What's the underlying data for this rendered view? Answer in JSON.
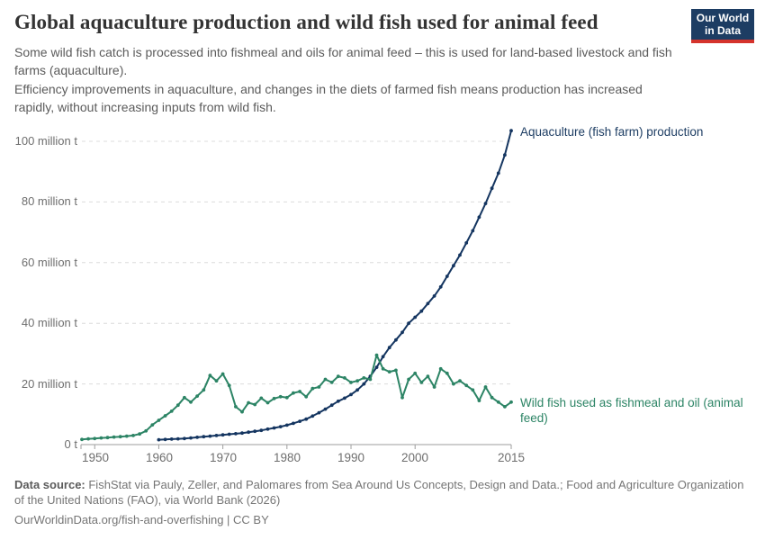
{
  "header": {
    "title": "Global aquaculture production and wild fish used for animal feed",
    "logo": {
      "line1": "Our World",
      "line2": "in Data",
      "bg_color": "#1d3d63",
      "bar_color": "#d5332c"
    },
    "subtitle_1": "Some wild fish catch is processed into fishmeal and oils for animal feed – this is used for land-based livestock and fish farms (aquaculture).",
    "subtitle_2": "Efficiency improvements in aquaculture, and changes in the diets of farmed fish means production has increased rapidly, without increasing inputs from wild fish."
  },
  "chart_data": {
    "type": "line",
    "title": "Global aquaculture production and wild fish used for animal feed",
    "unit": "million tonnes",
    "xlim": [
      1948,
      2015
    ],
    "ylim": [
      0,
      105
    ],
    "grid": "horizontal dashed",
    "legend_position": "end-of-line labels",
    "xticks": [
      1950,
      1960,
      1970,
      1980,
      1990,
      2000,
      2015
    ],
    "yticks": [
      {
        "value": 0,
        "label": "0 t"
      },
      {
        "value": 20,
        "label": "20 million t"
      },
      {
        "value": 40,
        "label": "40 million t"
      },
      {
        "value": 60,
        "label": "60 million t"
      },
      {
        "value": 80,
        "label": "80 million t"
      },
      {
        "value": 100,
        "label": "100 million t"
      }
    ],
    "series": [
      {
        "name": "Aquaculture (fish farm) production",
        "color": "#143560",
        "x": [
          1960,
          1961,
          1962,
          1963,
          1964,
          1965,
          1966,
          1967,
          1968,
          1969,
          1970,
          1971,
          1972,
          1973,
          1974,
          1975,
          1976,
          1977,
          1978,
          1979,
          1980,
          1981,
          1982,
          1983,
          1984,
          1985,
          1986,
          1987,
          1988,
          1989,
          1990,
          1991,
          1992,
          1993,
          1994,
          1995,
          1996,
          1997,
          1998,
          1999,
          2000,
          2001,
          2002,
          2003,
          2004,
          2005,
          2006,
          2007,
          2008,
          2009,
          2010,
          2011,
          2012,
          2013,
          2014,
          2015
        ],
        "values": [
          1.6,
          1.7,
          1.8,
          1.9,
          2.0,
          2.2,
          2.4,
          2.6,
          2.8,
          3.0,
          3.2,
          3.4,
          3.6,
          3.8,
          4.1,
          4.4,
          4.7,
          5.1,
          5.5,
          5.9,
          6.4,
          7.0,
          7.7,
          8.4,
          9.4,
          10.5,
          11.7,
          13.0,
          14.3,
          15.3,
          16.5,
          18.0,
          20.0,
          22.5,
          25.5,
          29.0,
          32.0,
          34.5,
          37.0,
          40.0,
          42.0,
          44.0,
          46.5,
          49.0,
          52.0,
          55.5,
          59.0,
          62.5,
          66.5,
          70.5,
          75.0,
          79.5,
          84.5,
          89.5,
          95.5,
          103.5
        ]
      },
      {
        "name": "Wild fish used as fishmeal and oil (animal feed)",
        "color": "#2c8465",
        "x": [
          1948,
          1949,
          1950,
          1951,
          1952,
          1953,
          1954,
          1955,
          1956,
          1957,
          1958,
          1959,
          1960,
          1961,
          1962,
          1963,
          1964,
          1965,
          1966,
          1967,
          1968,
          1969,
          1970,
          1971,
          1972,
          1973,
          1974,
          1975,
          1976,
          1977,
          1978,
          1979,
          1980,
          1981,
          1982,
          1983,
          1984,
          1985,
          1986,
          1987,
          1988,
          1989,
          1990,
          1991,
          1992,
          1993,
          1994,
          1995,
          1996,
          1997,
          1998,
          1999,
          2000,
          2001,
          2002,
          2003,
          2004,
          2005,
          2006,
          2007,
          2008,
          2009,
          2010,
          2011,
          2012,
          2013,
          2014,
          2015
        ],
        "values": [
          1.7,
          1.9,
          2.0,
          2.2,
          2.3,
          2.5,
          2.6,
          2.8,
          3.0,
          3.5,
          4.5,
          6.5,
          8.0,
          9.5,
          11.0,
          13.0,
          15.5,
          14.0,
          16.0,
          18.0,
          22.8,
          21.0,
          23.3,
          19.5,
          12.5,
          10.8,
          13.8,
          13.2,
          15.3,
          13.8,
          15.2,
          15.8,
          15.5,
          17.0,
          17.5,
          15.8,
          18.5,
          19.0,
          21.5,
          20.5,
          22.5,
          22.0,
          20.5,
          21.0,
          22.0,
          21.5,
          29.5,
          25.0,
          24.0,
          24.5,
          15.5,
          21.5,
          23.5,
          20.5,
          22.5,
          19.0,
          25.0,
          23.5,
          20.0,
          21.0,
          19.5,
          18.0,
          14.5,
          19.0,
          15.5,
          14.0,
          12.5,
          14.0
        ]
      }
    ]
  },
  "footer": {
    "data_source_label": "Data source:",
    "data_source_text": " FishStat via Pauly, Zeller, and Palomares from Sea Around Us Concepts, Design and Data.; Food and Agriculture Organization of the United Nations (FAO), via World Bank (2026)",
    "citation": "OurWorldinData.org/fish-and-overfishing | CC BY"
  }
}
